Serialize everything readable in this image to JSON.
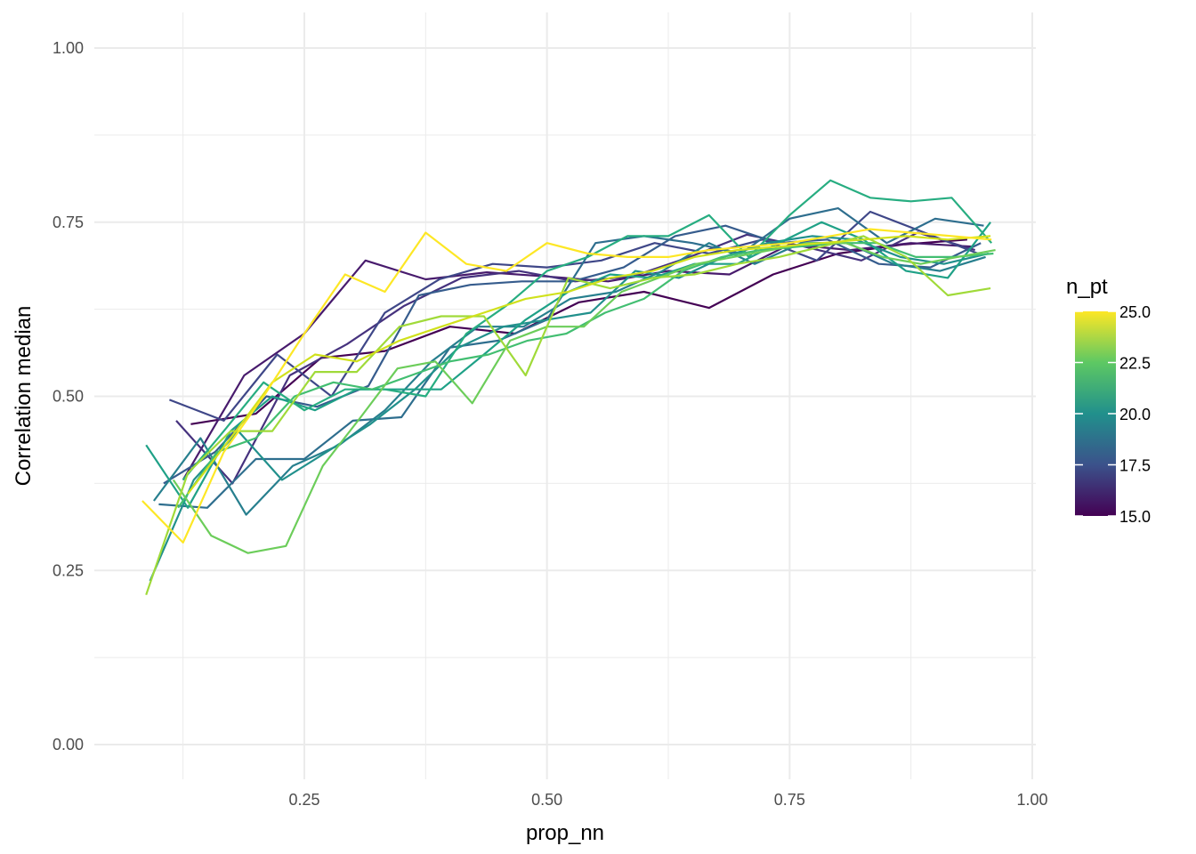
{
  "chart_data": {
    "type": "line",
    "xlabel": "prop_nn",
    "ylabel": "Correlation median",
    "xlim": [
      0.05,
      1.0
    ],
    "ylim": [
      0.0,
      1.0
    ],
    "x_ticks": [
      "0.25",
      "0.50",
      "0.75",
      "1.00"
    ],
    "y_ticks": [
      "0.00",
      "0.25",
      "0.50",
      "0.75",
      "1.00"
    ],
    "x_tick_values": [
      0.25,
      0.5,
      0.75,
      1.0
    ],
    "y_tick_values": [
      0.0,
      0.25,
      0.5,
      0.75,
      1.0
    ],
    "grid": true,
    "legend": {
      "title": "n_pt",
      "placement": "right",
      "min": 15.0,
      "max": 25.0,
      "ticks": [
        "15.0",
        "17.5",
        "20.0",
        "22.5",
        "25.0"
      ],
      "tick_values": [
        15.0,
        17.5,
        20.0,
        22.5,
        25.0
      ],
      "palette": [
        "#440154",
        "#3b528b",
        "#21908c",
        "#5dc863",
        "#fde725"
      ]
    },
    "series": [
      {
        "n_pt": 15,
        "color": "#440154",
        "x": [
          0.133,
          0.2,
          0.267,
          0.333,
          0.4,
          0.467,
          0.533,
          0.6,
          0.667,
          0.733,
          0.8,
          0.867,
          0.933
        ],
        "y": [
          0.46,
          0.475,
          0.555,
          0.565,
          0.6,
          0.59,
          0.635,
          0.65,
          0.627,
          0.675,
          0.705,
          0.718,
          0.725
        ]
      },
      {
        "n_pt": 15.7,
        "color": "#481b6d",
        "x": [
          0.125,
          0.188,
          0.25,
          0.313,
          0.375,
          0.438,
          0.5,
          0.563,
          0.625,
          0.688,
          0.75,
          0.813,
          0.875,
          0.938
        ],
        "y": [
          0.38,
          0.53,
          0.59,
          0.695,
          0.668,
          0.678,
          0.672,
          0.665,
          0.68,
          0.675,
          0.718,
          0.71,
          0.72,
          0.715
        ]
      },
      {
        "n_pt": 16.4,
        "color": "#46327e",
        "x": [
          0.118,
          0.176,
          0.235,
          0.294,
          0.353,
          0.412,
          0.471,
          0.529,
          0.588,
          0.647,
          0.706,
          0.765,
          0.824,
          0.882,
          0.941
        ],
        "y": [
          0.465,
          0.375,
          0.53,
          0.575,
          0.63,
          0.67,
          0.68,
          0.665,
          0.672,
          0.7,
          0.732,
          0.715,
          0.695,
          0.735,
          0.71
        ]
      },
      {
        "n_pt": 17.1,
        "color": "#3f4788",
        "x": [
          0.111,
          0.167,
          0.222,
          0.278,
          0.333,
          0.389,
          0.444,
          0.5,
          0.556,
          0.611,
          0.667,
          0.722,
          0.778,
          0.833,
          0.889,
          0.944
        ],
        "y": [
          0.495,
          0.465,
          0.56,
          0.5,
          0.62,
          0.668,
          0.69,
          0.685,
          0.695,
          0.72,
          0.705,
          0.725,
          0.695,
          0.765,
          0.735,
          0.705
        ]
      },
      {
        "n_pt": 17.9,
        "color": "#365c8d",
        "x": [
          0.105,
          0.158,
          0.211,
          0.263,
          0.316,
          0.368,
          0.421,
          0.474,
          0.526,
          0.579,
          0.632,
          0.684,
          0.737,
          0.789,
          0.842,
          0.895,
          0.947
        ],
        "y": [
          0.375,
          0.42,
          0.5,
          0.485,
          0.515,
          0.645,
          0.66,
          0.665,
          0.665,
          0.685,
          0.73,
          0.745,
          0.72,
          0.725,
          0.69,
          0.685,
          0.72
        ]
      },
      {
        "n_pt": 18.6,
        "color": "#2e6e8e",
        "x": [
          0.1,
          0.15,
          0.2,
          0.25,
          0.3,
          0.35,
          0.4,
          0.45,
          0.5,
          0.55,
          0.6,
          0.65,
          0.7,
          0.75,
          0.8,
          0.85,
          0.9,
          0.95
        ],
        "y": [
          0.345,
          0.34,
          0.41,
          0.41,
          0.465,
          0.47,
          0.57,
          0.58,
          0.61,
          0.72,
          0.73,
          0.72,
          0.705,
          0.755,
          0.77,
          0.72,
          0.755,
          0.745
        ]
      },
      {
        "n_pt": 19.3,
        "color": "#277f8e",
        "x": [
          0.095,
          0.143,
          0.19,
          0.238,
          0.286,
          0.333,
          0.381,
          0.429,
          0.476,
          0.524,
          0.571,
          0.619,
          0.667,
          0.714,
          0.762,
          0.81,
          0.857,
          0.905,
          0.952
        ],
        "y": [
          0.35,
          0.44,
          0.33,
          0.4,
          0.43,
          0.48,
          0.55,
          0.6,
          0.6,
          0.64,
          0.65,
          0.68,
          0.72,
          0.69,
          0.72,
          0.72,
          0.69,
          0.68,
          0.7
        ]
      },
      {
        "n_pt": 20.0,
        "color": "#21908c",
        "x": [
          0.091,
          0.136,
          0.182,
          0.227,
          0.273,
          0.318,
          0.364,
          0.409,
          0.455,
          0.5,
          0.545,
          0.591,
          0.636,
          0.682,
          0.727,
          0.773,
          0.818,
          0.864,
          0.909,
          0.955
        ],
        "y": [
          0.235,
          0.38,
          0.45,
          0.38,
          0.42,
          0.46,
          0.51,
          0.57,
          0.6,
          0.61,
          0.62,
          0.68,
          0.67,
          0.7,
          0.72,
          0.73,
          0.725,
          0.7,
          0.69,
          0.705
        ]
      },
      {
        "n_pt": 20.8,
        "color": "#1fa187",
        "x": [
          0.087,
          0.13,
          0.174,
          0.217,
          0.261,
          0.304,
          0.348,
          0.391,
          0.435,
          0.478,
          0.522,
          0.565,
          0.609,
          0.652,
          0.696,
          0.739,
          0.783,
          0.826,
          0.87,
          0.913,
          0.957
        ],
        "y": [
          0.43,
          0.34,
          0.45,
          0.5,
          0.48,
          0.51,
          0.51,
          0.51,
          0.56,
          0.61,
          0.65,
          0.675,
          0.67,
          0.69,
          0.69,
          0.72,
          0.75,
          0.725,
          0.68,
          0.67,
          0.75
        ]
      },
      {
        "n_pt": 21.4,
        "color": "#27ad81",
        "x": [
          0.125,
          0.167,
          0.208,
          0.25,
          0.292,
          0.333,
          0.375,
          0.417,
          0.458,
          0.5,
          0.542,
          0.583,
          0.625,
          0.667,
          0.708,
          0.75,
          0.792,
          0.833,
          0.875,
          0.917,
          0.958
        ],
        "y": [
          0.38,
          0.45,
          0.52,
          0.48,
          0.51,
          0.51,
          0.5,
          0.59,
          0.63,
          0.68,
          0.7,
          0.73,
          0.73,
          0.76,
          0.7,
          0.76,
          0.81,
          0.785,
          0.78,
          0.785,
          0.72
        ]
      },
      {
        "n_pt": 22.1,
        "color": "#42be71",
        "x": [
          0.12,
          0.16,
          0.2,
          0.24,
          0.28,
          0.32,
          0.36,
          0.4,
          0.44,
          0.48,
          0.52,
          0.56,
          0.6,
          0.64,
          0.68,
          0.72,
          0.76,
          0.8,
          0.84,
          0.88,
          0.92,
          0.96
        ],
        "y": [
          0.34,
          0.42,
          0.44,
          0.5,
          0.52,
          0.51,
          0.53,
          0.55,
          0.56,
          0.58,
          0.59,
          0.62,
          0.64,
          0.68,
          0.7,
          0.71,
          0.715,
          0.72,
          0.72,
          0.7,
          0.7,
          0.705
        ]
      },
      {
        "n_pt": 22.9,
        "color": "#6ccd5a",
        "x": [
          0.115,
          0.154,
          0.192,
          0.231,
          0.269,
          0.308,
          0.346,
          0.385,
          0.423,
          0.462,
          0.5,
          0.538,
          0.577,
          0.615,
          0.654,
          0.692,
          0.731,
          0.769,
          0.808,
          0.846,
          0.885,
          0.923,
          0.962
        ],
        "y": [
          0.38,
          0.3,
          0.275,
          0.285,
          0.4,
          0.47,
          0.54,
          0.55,
          0.49,
          0.58,
          0.6,
          0.6,
          0.65,
          0.67,
          0.69,
          0.7,
          0.71,
          0.72,
          0.72,
          0.7,
          0.69,
          0.7,
          0.71
        ]
      },
      {
        "n_pt": 23.6,
        "color": "#a0da39",
        "x": [
          0.087,
          0.13,
          0.174,
          0.217,
          0.261,
          0.304,
          0.348,
          0.391,
          0.435,
          0.478,
          0.522,
          0.565,
          0.609,
          0.652,
          0.696,
          0.739,
          0.783,
          0.826,
          0.87,
          0.913,
          0.957
        ],
        "y": [
          0.215,
          0.39,
          0.45,
          0.45,
          0.535,
          0.535,
          0.6,
          0.615,
          0.615,
          0.53,
          0.67,
          0.655,
          0.67,
          0.675,
          0.69,
          0.7,
          0.715,
          0.73,
          0.7,
          0.645,
          0.655
        ]
      },
      {
        "n_pt": 24.3,
        "color": "#d0e11c",
        "x": [
          0.13,
          0.174,
          0.217,
          0.261,
          0.304,
          0.348,
          0.391,
          0.435,
          0.478,
          0.522,
          0.565,
          0.609,
          0.652,
          0.696,
          0.739,
          0.783,
          0.826,
          0.87,
          0.913,
          0.957
        ],
        "y": [
          0.36,
          0.44,
          0.52,
          0.56,
          0.55,
          0.58,
          0.6,
          0.62,
          0.64,
          0.65,
          0.67,
          0.68,
          0.7,
          0.71,
          0.715,
          0.72,
          0.725,
          0.73,
          0.725,
          0.73
        ]
      },
      {
        "n_pt": 25.0,
        "color": "#fde725",
        "x": [
          0.083,
          0.125,
          0.167,
          0.208,
          0.25,
          0.292,
          0.333,
          0.375,
          0.417,
          0.458,
          0.5,
          0.542,
          0.583,
          0.625,
          0.667,
          0.708,
          0.75,
          0.792,
          0.833,
          0.875,
          0.917,
          0.958
        ],
        "y": [
          0.35,
          0.29,
          0.42,
          0.5,
          0.59,
          0.675,
          0.65,
          0.735,
          0.69,
          0.68,
          0.72,
          0.705,
          0.7,
          0.7,
          0.71,
          0.715,
          0.72,
          0.73,
          0.74,
          0.735,
          0.73,
          0.725
        ]
      }
    ]
  }
}
